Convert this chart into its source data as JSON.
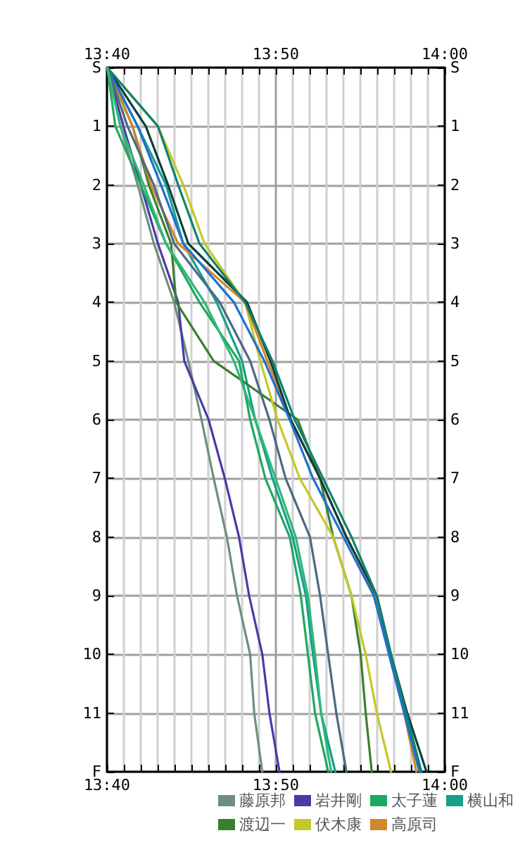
{
  "chart_data": {
    "type": "line",
    "marker": "none",
    "line_style": "solid",
    "grid": true,
    "legend": "bottom",
    "xlim": [
      13.6667,
      14.0
    ],
    "x2lim": [
      13.6667,
      14.0
    ],
    "ylim": [
      12,
      0
    ],
    "y2lim": [
      12,
      0
    ],
    "xticks": [
      {
        "value": 13.6667,
        "label": "13:40"
      },
      {
        "value": 13.6833,
        "label": null
      },
      {
        "value": 13.7,
        "label": null
      },
      {
        "value": 13.7167,
        "label": null
      },
      {
        "value": 13.7333,
        "label": null
      },
      {
        "value": 13.75,
        "label": null
      },
      {
        "value": 13.7667,
        "label": null
      },
      {
        "value": 13.7833,
        "label": null
      },
      {
        "value": 13.8,
        "label": null
      },
      {
        "value": 13.8167,
        "label": null
      },
      {
        "value": 13.8333,
        "label": "13:50"
      },
      {
        "value": 13.85,
        "label": null
      },
      {
        "value": 13.8667,
        "label": null
      },
      {
        "value": 13.8833,
        "label": null
      },
      {
        "value": 13.9,
        "label": null
      },
      {
        "value": 13.9167,
        "label": null
      },
      {
        "value": 13.9333,
        "label": null
      },
      {
        "value": 13.95,
        "label": null
      },
      {
        "value": 13.9667,
        "label": null
      },
      {
        "value": 13.9833,
        "label": null
      },
      {
        "value": 14.0,
        "label": "14:00"
      }
    ],
    "x2ticks": [
      {
        "value": 13.6667,
        "label": "13:40"
      },
      {
        "value": 13.6833,
        "label": null
      },
      {
        "value": 13.7,
        "label": null
      },
      {
        "value": 13.7167,
        "label": null
      },
      {
        "value": 13.7333,
        "label": null
      },
      {
        "value": 13.75,
        "label": null
      },
      {
        "value": 13.7667,
        "label": null
      },
      {
        "value": 13.7833,
        "label": null
      },
      {
        "value": 13.8,
        "label": null
      },
      {
        "value": 13.8167,
        "label": null
      },
      {
        "value": 13.8333,
        "label": "13:50"
      },
      {
        "value": 13.85,
        "label": null
      },
      {
        "value": 13.8667,
        "label": null
      },
      {
        "value": 13.8833,
        "label": null
      },
      {
        "value": 13.9,
        "label": null
      },
      {
        "value": 13.9167,
        "label": null
      },
      {
        "value": 13.9333,
        "label": null
      },
      {
        "value": 13.95,
        "label": null
      },
      {
        "value": 13.9667,
        "label": null
      },
      {
        "value": 13.9833,
        "label": null
      },
      {
        "value": 14.0,
        "label": "14:00"
      }
    ],
    "yticks": [
      {
        "value": 0,
        "label": "S"
      },
      1,
      2,
      3,
      4,
      5,
      6,
      7,
      8,
      9,
      10,
      11,
      {
        "value": 12,
        "label": "F"
      }
    ],
    "y2ticks": [
      {
        "value": 0,
        "label": "S"
      },
      1,
      2,
      3,
      4,
      5,
      6,
      7,
      8,
      9,
      10,
      11,
      {
        "value": 12,
        "label": "F"
      }
    ],
    "series": [
      {
        "name": "藤原邦",
        "color": "#6f8f7c",
        "x": [
          13.667,
          13.68,
          13.697,
          13.713,
          13.733,
          13.747,
          13.76,
          13.772,
          13.785,
          13.795,
          13.808,
          13.812,
          13.82
        ],
        "values": [
          0,
          1,
          2,
          3,
          4,
          5,
          6,
          7,
          8,
          9,
          10,
          11,
          12
        ]
      },
      {
        "name": "岩井剛",
        "color": "#4a3aa8",
        "x": [
          13.667,
          13.683,
          13.7,
          13.717,
          13.737,
          13.743,
          13.767,
          13.783,
          13.797,
          13.807,
          13.82,
          13.827,
          13.837
        ],
        "values": [
          0,
          1,
          2,
          3,
          4,
          5,
          6,
          7,
          8,
          9,
          10,
          11,
          12
        ]
      },
      {
        "name": "太子蓮",
        "color": "#1fa860",
        "x": [
          13.667,
          13.675,
          13.7,
          13.725,
          13.758,
          13.797,
          13.808,
          13.823,
          13.847,
          13.858,
          13.865,
          13.872,
          13.885
        ],
        "values": [
          0,
          1,
          2,
          3,
          4,
          5,
          6,
          7,
          8,
          9,
          10,
          11,
          12
        ]
      },
      {
        "name": "横山和",
        "color": "#14a08c",
        "x": [
          13.667,
          13.697,
          13.725,
          13.742,
          13.775,
          13.8,
          13.813,
          13.83,
          13.85,
          13.863,
          13.87,
          13.878,
          13.892
        ],
        "values": [
          0,
          1,
          2,
          3,
          4,
          5,
          6,
          7,
          8,
          9,
          10,
          11,
          12
        ]
      },
      {
        "name": "渡辺一",
        "color": "#3a7f30",
        "x": [
          13.667,
          13.692,
          13.708,
          13.73,
          13.735,
          13.772,
          13.855,
          13.877,
          13.89,
          13.908,
          13.917,
          13.922,
          13.928
        ],
        "values": [
          0,
          1,
          2,
          3,
          4,
          5,
          6,
          7,
          8,
          9,
          10,
          11,
          12
        ]
      },
      {
        "name": "伏木康",
        "color": "#c4c828",
        "x": [
          13.667,
          13.717,
          13.742,
          13.763,
          13.803,
          13.818,
          13.835,
          13.857,
          13.89,
          13.908,
          13.922,
          13.933,
          13.947
        ],
        "values": [
          0,
          1,
          2,
          3,
          4,
          5,
          6,
          7,
          8,
          9,
          10,
          11,
          12
        ]
      },
      {
        "name": "高原司",
        "color": "#d0882a",
        "x": [
          13.667,
          13.692,
          13.71,
          13.737,
          13.803,
          13.825,
          13.848,
          13.877,
          13.903,
          13.932,
          13.945,
          13.96,
          13.972
        ],
        "values": [
          0,
          1,
          2,
          3,
          4,
          5,
          6,
          7,
          8,
          9,
          10,
          11,
          12
        ]
      },
      {
        "color": "#0e3e3a",
        "x": [
          13.667,
          13.705,
          13.727,
          13.747,
          13.805,
          13.828,
          13.848,
          13.877,
          13.903,
          13.933,
          13.947,
          13.963,
          13.982
        ],
        "values": [
          0,
          1,
          2,
          3,
          4,
          5,
          6,
          7,
          8,
          9,
          10,
          11,
          12
        ]
      },
      {
        "color": "#2070d0",
        "x": [
          13.667,
          13.697,
          13.72,
          13.742,
          13.792,
          13.822,
          13.847,
          13.87,
          13.9,
          13.93,
          13.945,
          13.96,
          13.975
        ],
        "values": [
          0,
          1,
          2,
          3,
          4,
          5,
          6,
          7,
          8,
          9,
          10,
          11,
          12
        ]
      },
      {
        "color": "#108070",
        "x": [
          13.667,
          13.717,
          13.737,
          13.758,
          13.803,
          13.83,
          13.852,
          13.88,
          13.908,
          13.933,
          13.947,
          13.962,
          13.977
        ],
        "values": [
          0,
          1,
          2,
          3,
          4,
          5,
          6,
          7,
          8,
          9,
          10,
          11,
          12
        ]
      },
      {
        "color": "#4a6a80",
        "x": [
          13.667,
          13.687,
          13.713,
          13.733,
          13.778,
          13.808,
          13.827,
          13.843,
          13.867,
          13.877,
          13.885,
          13.893,
          13.903
        ],
        "values": [
          0,
          1,
          2,
          3,
          4,
          5,
          6,
          7,
          8,
          9,
          10,
          11,
          12
        ]
      },
      {
        "color": "#30b878",
        "x": [
          13.667,
          13.68,
          13.703,
          13.725,
          13.763,
          13.792,
          13.813,
          13.833,
          13.853,
          13.865,
          13.872,
          13.878,
          13.888
        ],
        "values": [
          0,
          1,
          2,
          3,
          4,
          5,
          6,
          7,
          8,
          9,
          10,
          11,
          12
        ]
      }
    ]
  }
}
